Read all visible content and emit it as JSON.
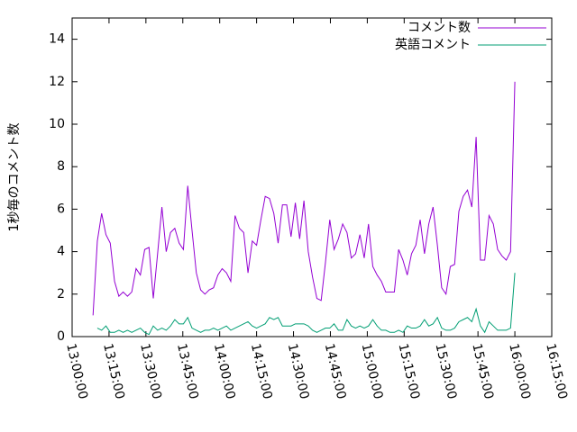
{
  "chart_data": {
    "type": "line",
    "ylabel": "1秒毎のコメント数",
    "x": [
      "13:08:30",
      "13:10:15",
      "13:12:00",
      "13:13:45",
      "13:15:30",
      "13:17:15",
      "13:19:00",
      "13:20:45",
      "13:22:30",
      "13:24:15",
      "13:26:00",
      "13:27:45",
      "13:29:30",
      "13:31:15",
      "13:33:00",
      "13:34:45",
      "13:36:30",
      "13:38:15",
      "13:40:00",
      "13:41:45",
      "13:43:30",
      "13:45:15",
      "13:47:00",
      "13:48:45",
      "13:50:30",
      "13:52:15",
      "13:54:00",
      "13:55:45",
      "13:57:30",
      "13:59:15",
      "14:01:00",
      "14:02:45",
      "14:04:30",
      "14:06:15",
      "14:08:00",
      "14:09:45",
      "14:11:30",
      "14:13:15",
      "14:15:00",
      "14:16:45",
      "14:18:30",
      "14:20:15",
      "14:22:00",
      "14:23:45",
      "14:25:30",
      "14:27:15",
      "14:29:00",
      "14:30:45",
      "14:32:30",
      "14:34:15",
      "14:36:00",
      "14:37:45",
      "14:39:30",
      "14:41:15",
      "14:43:00",
      "14:44:45",
      "14:46:30",
      "14:48:15",
      "14:50:00",
      "14:51:45",
      "14:53:30",
      "14:55:15",
      "14:57:00",
      "14:58:45",
      "15:00:30",
      "15:02:15",
      "15:04:00",
      "15:05:45",
      "15:07:30",
      "15:09:15",
      "15:11:00",
      "15:12:45",
      "15:14:30",
      "15:16:15",
      "15:18:00",
      "15:19:45",
      "15:21:30",
      "15:23:15",
      "15:25:00",
      "15:26:45",
      "15:28:30",
      "15:30:15",
      "15:32:00",
      "15:33:45",
      "15:35:30",
      "15:37:15",
      "15:39:00",
      "15:40:45",
      "15:42:30",
      "15:44:15",
      "15:46:00",
      "15:47:45",
      "15:49:30",
      "15:51:15",
      "15:53:00",
      "15:54:45",
      "15:56:30",
      "15:58:15",
      "16:00:00"
    ],
    "series": [
      {
        "name": "コメント数",
        "color": "#9400d3",
        "values": [
          1.0,
          4.5,
          5.8,
          4.8,
          4.4,
          2.6,
          1.9,
          2.1,
          1.9,
          2.1,
          3.2,
          2.9,
          4.1,
          4.2,
          1.8,
          3.9,
          6.1,
          4.0,
          4.9,
          5.1,
          4.4,
          4.1,
          7.1,
          5.0,
          3.0,
          2.2,
          2.0,
          2.2,
          2.3,
          2.9,
          3.2,
          3.0,
          2.6,
          5.7,
          5.1,
          4.9,
          3.0,
          4.5,
          4.3,
          5.5,
          6.6,
          6.5,
          5.8,
          4.4,
          6.2,
          6.2,
          4.7,
          6.3,
          4.6,
          6.4,
          4.0,
          2.8,
          1.8,
          1.7,
          3.5,
          5.5,
          4.1,
          4.6,
          5.3,
          4.9,
          3.7,
          3.9,
          4.8,
          3.7,
          5.3,
          3.3,
          2.9,
          2.6,
          2.1,
          2.1,
          2.1,
          4.1,
          3.6,
          2.9,
          3.9,
          4.3,
          5.5,
          3.9,
          5.3,
          6.1,
          4.3,
          2.3,
          2.0,
          3.3,
          3.4,
          5.9,
          6.6,
          6.9,
          6.1,
          9.4,
          3.6,
          3.6,
          5.7,
          5.3,
          4.1,
          3.8,
          3.6,
          4.0,
          12.0
        ]
      },
      {
        "name": "英語コメント",
        "color": "#009e73",
        "values": [
          null,
          0.4,
          0.3,
          0.5,
          0.2,
          0.2,
          0.3,
          0.2,
          0.3,
          0.2,
          0.3,
          0.4,
          0.2,
          0.1,
          0.5,
          0.3,
          0.4,
          0.3,
          0.5,
          0.8,
          0.6,
          0.6,
          0.9,
          0.4,
          0.3,
          0.2,
          0.3,
          0.3,
          0.4,
          0.3,
          0.4,
          0.5,
          0.3,
          0.4,
          0.5,
          0.6,
          0.7,
          0.5,
          0.4,
          0.5,
          0.6,
          0.9,
          0.8,
          0.9,
          0.5,
          0.5,
          0.5,
          0.6,
          0.6,
          0.6,
          0.5,
          0.3,
          0.2,
          0.3,
          0.4,
          0.4,
          0.6,
          0.3,
          0.3,
          0.8,
          0.5,
          0.4,
          0.5,
          0.4,
          0.5,
          0.8,
          0.5,
          0.3,
          0.3,
          0.2,
          0.2,
          0.3,
          0.2,
          0.5,
          0.4,
          0.4,
          0.5,
          0.8,
          0.5,
          0.6,
          0.9,
          0.4,
          0.3,
          0.3,
          0.4,
          0.7,
          0.8,
          0.9,
          0.7,
          1.3,
          0.5,
          0.2,
          0.7,
          0.5,
          0.3,
          0.3,
          0.3,
          0.4,
          3.0
        ]
      }
    ],
    "xlim": [
      "13:00:00",
      "16:15:00"
    ],
    "xticks": [
      "13:00:00",
      "13:15:00",
      "13:30:00",
      "13:45:00",
      "14:00:00",
      "14:15:00",
      "14:30:00",
      "14:45:00",
      "15:00:00",
      "15:15:00",
      "15:30:00",
      "15:45:00",
      "16:00:00",
      "16:15:00"
    ],
    "ylim": [
      0,
      15
    ],
    "yticks": [
      0,
      2,
      4,
      6,
      8,
      10,
      12,
      14
    ],
    "legend": "top-right"
  }
}
